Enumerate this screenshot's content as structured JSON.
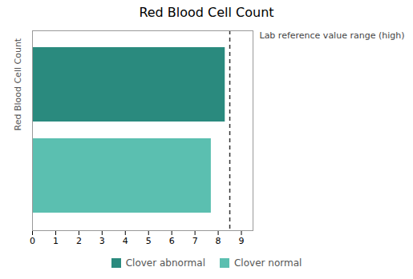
{
  "chart_data": {
    "type": "bar",
    "orientation": "horizontal",
    "title": "Red Blood Cell Count",
    "ylabel": "Red Blood Cell Count",
    "categories": [
      "Clover abnormal",
      "Clover normal"
    ],
    "values": [
      8.3,
      7.7
    ],
    "colors": [
      "#2a8a7e",
      "#5bbfb0"
    ],
    "xlim": [
      0,
      9.5
    ],
    "xticks": [
      0,
      1,
      2,
      3,
      4,
      5,
      6,
      7,
      8,
      9
    ],
    "tick_labels": "x",
    "grid": false,
    "legend": "bottom",
    "reference_lines": [
      {
        "x": 8.5,
        "label": "Lab reference value range (high)",
        "color": "#333333",
        "line_style": "dashed"
      },
      {
        "x": 0,
        "color": "#aaaaaa",
        "line_style": "dashed"
      }
    ]
  }
}
